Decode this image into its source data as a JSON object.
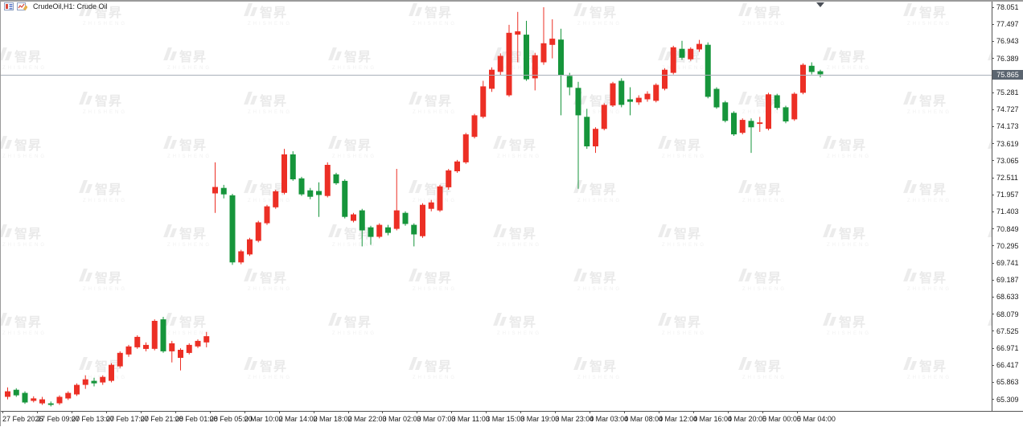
{
  "window": {
    "symbol_label": "CrudeOil,H1: Crude Oil"
  },
  "icons": {
    "chart_window_icon": "candlestick-chart-mini-icon",
    "chart_objects_icon": "chart-edit-mini-icon",
    "shift_marker_icon": "triangle-down"
  },
  "watermark": {
    "cn": "智昇",
    "en": "ZHISHENG"
  },
  "colors": {
    "up": "#ec2f25",
    "down": "#16953b",
    "price_line": "#a9b0ba",
    "tag_bg": "#5b6570",
    "tag_text": "#ffffff",
    "axis_text": "#1a1a1a"
  },
  "price_axis": {
    "labels": [
      "78.051",
      "77.497",
      "76.943",
      "76.389",
      "75.835",
      "75.281",
      "74.727",
      "74.173",
      "73.619",
      "73.065",
      "72.511",
      "71.957",
      "71.403",
      "70.849",
      "70.295",
      "69.741",
      "69.187",
      "68.633",
      "68.079",
      "67.525",
      "66.971",
      "66.417",
      "65.863",
      "65.309"
    ],
    "current": "75.865"
  },
  "time_axis": {
    "labels": [
      "27 Feb 2026",
      "27 Feb 09:00",
      "27 Feb 13:00",
      "27 Feb 17:00",
      "27 Feb 21:00",
      "28 Feb 01:00",
      "28 Feb 05:00",
      "2 Mar 10:00",
      "2 Mar 14:00",
      "2 Mar 18:00",
      "2 Mar 22:00",
      "3 Mar 02:00",
      "3 Mar 07:00",
      "3 Mar 11:00",
      "3 Mar 15:00",
      "3 Mar 19:00",
      "3 Mar 23:00",
      "4 Mar 03:00",
      "4 Mar 08:00",
      "4 Mar 12:00",
      "4 Mar 16:00",
      "4 Mar 20:00",
      "5 Mar 00:00",
      "5 Mar 04:00"
    ]
  },
  "chart_data": {
    "type": "candlestick",
    "title": "CrudeOil,H1: Crude Oil",
    "symbol": "CrudeOil",
    "timeframe": "H1",
    "up_color": "#ec2f25",
    "down_color": "#16953b",
    "price_step": 0.554,
    "ylim": [
      65.1,
      78.26
    ],
    "current_price": 75.865,
    "y_ticks": [
      78.051,
      77.497,
      76.943,
      76.389,
      75.835,
      75.281,
      74.727,
      74.173,
      73.619,
      73.065,
      72.511,
      71.957,
      71.403,
      70.849,
      70.295,
      69.741,
      69.187,
      68.633,
      68.079,
      67.525,
      66.971,
      66.417,
      65.863,
      65.309
    ],
    "x_ticks": [
      "27 Feb 2026",
      "27 Feb 09:00",
      "27 Feb 13:00",
      "27 Feb 17:00",
      "27 Feb 21:00",
      "28 Feb 01:00",
      "28 Feb 05:00",
      "2 Mar 10:00",
      "2 Mar 14:00",
      "2 Mar 18:00",
      "2 Mar 22:00",
      "3 Mar 02:00",
      "3 Mar 07:00",
      "3 Mar 11:00",
      "3 Mar 15:00",
      "3 Mar 19:00",
      "3 Mar 23:00",
      "4 Mar 03:00",
      "4 Mar 08:00",
      "4 Mar 12:00",
      "4 Mar 16:00",
      "4 Mar 20:00",
      "5 Mar 00:00",
      "5 Mar 04:00"
    ],
    "ohlc": [
      [
        65.39,
        65.7,
        65.31,
        65.57
      ],
      [
        65.62,
        65.67,
        65.39,
        65.44
      ],
      [
        65.52,
        65.57,
        65.16,
        65.21
      ],
      [
        65.26,
        65.41,
        65.21,
        65.34
      ],
      [
        65.18,
        65.39,
        65.13,
        65.31
      ],
      [
        65.18,
        65.24,
        65.08,
        65.13
      ],
      [
        65.18,
        65.44,
        65.13,
        65.39
      ],
      [
        65.34,
        65.57,
        65.29,
        65.52
      ],
      [
        65.47,
        65.83,
        65.42,
        65.78
      ],
      [
        65.78,
        66.09,
        65.65,
        65.96
      ],
      [
        65.91,
        66.01,
        65.73,
        65.83
      ],
      [
        65.86,
        66.09,
        65.78,
        66.04
      ],
      [
        65.91,
        66.48,
        65.86,
        66.43
      ],
      [
        66.38,
        66.87,
        66.33,
        66.82
      ],
      [
        66.77,
        67.08,
        66.69,
        67.03
      ],
      [
        67.0,
        67.39,
        66.95,
        67.34
      ],
      [
        66.95,
        67.16,
        66.87,
        67.08
      ],
      [
        66.95,
        67.91,
        66.9,
        67.86
      ],
      [
        67.91,
        67.99,
        66.82,
        66.87
      ],
      [
        66.87,
        67.21,
        66.51,
        67.13
      ],
      [
        66.66,
        66.97,
        66.25,
        66.92
      ],
      [
        66.82,
        67.13,
        66.77,
        67.08
      ],
      [
        67.03,
        67.26,
        66.98,
        67.21
      ],
      [
        67.16,
        67.5,
        67.0,
        67.36
      ],
      [
        72.0,
        73.01,
        71.37,
        72.21
      ],
      [
        72.18,
        72.28,
        71.84,
        71.97
      ],
      [
        71.94,
        71.99,
        69.68,
        69.76
      ],
      [
        69.76,
        70.17,
        69.7,
        70.12
      ],
      [
        70.02,
        70.56,
        69.97,
        70.51
      ],
      [
        70.46,
        71.11,
        70.41,
        71.06
      ],
      [
        71.03,
        71.63,
        70.98,
        71.58
      ],
      [
        71.55,
        72.12,
        71.5,
        72.07
      ],
      [
        72.02,
        73.45,
        71.97,
        73.27
      ],
      [
        73.27,
        73.37,
        72.41,
        72.46
      ],
      [
        72.49,
        72.54,
        71.92,
        71.97
      ],
      [
        72.1,
        72.18,
        71.81,
        71.89
      ],
      [
        72.08,
        72.36,
        71.24,
        71.95
      ],
      [
        71.92,
        73.01,
        71.87,
        72.93
      ],
      [
        72.62,
        72.67,
        72.28,
        72.33
      ],
      [
        72.41,
        72.46,
        71.19,
        71.24
      ],
      [
        71.11,
        71.37,
        71.06,
        71.32
      ],
      [
        71.45,
        71.5,
        70.28,
        70.8
      ],
      [
        70.9,
        70.95,
        70.33,
        70.59
      ],
      [
        70.59,
        71.03,
        70.54,
        70.98
      ],
      [
        70.9,
        70.98,
        70.64,
        70.72
      ],
      [
        70.85,
        72.8,
        70.8,
        71.45
      ],
      [
        71.37,
        71.42,
        70.95,
        71.01
      ],
      [
        70.98,
        71.03,
        70.28,
        70.67
      ],
      [
        70.61,
        71.68,
        70.56,
        71.63
      ],
      [
        71.5,
        71.79,
        71.42,
        71.71
      ],
      [
        71.45,
        72.28,
        71.4,
        72.23
      ],
      [
        72.2,
        72.8,
        72.12,
        72.75
      ],
      [
        72.72,
        73.09,
        72.67,
        73.04
      ],
      [
        73.01,
        73.97,
        72.96,
        73.92
      ],
      [
        73.84,
        74.59,
        73.79,
        74.54
      ],
      [
        74.49,
        75.66,
        74.44,
        75.48
      ],
      [
        75.4,
        76.1,
        75.3,
        76.02
      ],
      [
        75.95,
        76.55,
        75.85,
        76.47
      ],
      [
        75.19,
        77.48,
        75.14,
        77.22
      ],
      [
        77.16,
        77.9,
        76.26,
        77.27
      ],
      [
        77.16,
        77.61,
        75.66,
        75.71
      ],
      [
        75.74,
        76.57,
        75.35,
        76.49
      ],
      [
        76.26,
        78.05,
        76.18,
        76.88
      ],
      [
        76.83,
        77.66,
        76.39,
        77.03
      ],
      [
        77.0,
        77.35,
        74.54,
        75.84
      ],
      [
        75.82,
        75.92,
        75.19,
        75.45
      ],
      [
        75.43,
        75.63,
        72.15,
        74.54
      ],
      [
        74.49,
        74.75,
        73.45,
        73.53
      ],
      [
        73.53,
        74.15,
        73.32,
        74.1
      ],
      [
        74.1,
        74.93,
        74.05,
        74.88
      ],
      [
        74.86,
        75.63,
        74.81,
        75.58
      ],
      [
        75.66,
        75.74,
        74.8,
        74.88
      ],
      [
        75.06,
        75.45,
        74.54,
        74.98
      ],
      [
        74.96,
        75.19,
        74.88,
        75.11
      ],
      [
        75.06,
        75.32,
        74.98,
        75.24
      ],
      [
        75.01,
        75.58,
        74.96,
        75.53
      ],
      [
        75.4,
        76.07,
        75.35,
        76.02
      ],
      [
        75.92,
        76.8,
        75.87,
        76.75
      ],
      [
        76.7,
        76.96,
        76.34,
        76.41
      ],
      [
        76.36,
        76.75,
        76.31,
        76.7
      ],
      [
        76.68,
        76.99,
        76.6,
        76.86
      ],
      [
        76.83,
        76.91,
        75.09,
        75.14
      ],
      [
        75.4,
        75.45,
        74.75,
        74.8
      ],
      [
        74.96,
        75.01,
        74.31,
        74.36
      ],
      [
        74.62,
        74.67,
        73.87,
        73.92
      ],
      [
        73.97,
        74.44,
        73.92,
        74.39
      ],
      [
        74.36,
        74.44,
        73.32,
        74.15
      ],
      [
        74.26,
        74.49,
        74.0,
        74.31
      ],
      [
        74.1,
        75.27,
        74.05,
        75.22
      ],
      [
        75.19,
        75.24,
        74.72,
        74.78
      ],
      [
        74.8,
        74.85,
        74.28,
        74.34
      ],
      [
        74.41,
        75.29,
        74.36,
        75.24
      ],
      [
        75.27,
        76.23,
        75.22,
        76.18
      ],
      [
        76.15,
        76.26,
        75.87,
        75.95
      ],
      [
        75.97,
        76.02,
        75.77,
        75.87
      ]
    ]
  }
}
